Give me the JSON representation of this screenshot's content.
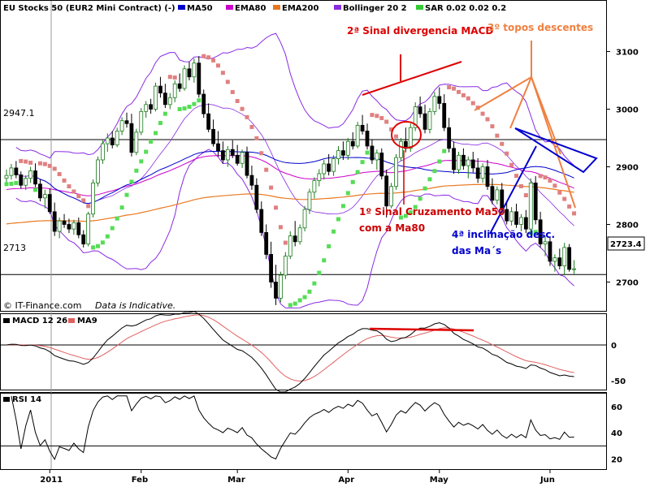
{
  "chart_data": {
    "type": "line",
    "title": "EU Stocks 50 (EUR2 Mini Contract) (-)",
    "legend": [
      {
        "name": "MA50",
        "color": "#0000cc"
      },
      {
        "name": "EMA80",
        "color": "#cc00cc"
      },
      {
        "name": "EMA200",
        "color": "#e87820"
      },
      {
        "name": "Bollinger 20 2",
        "color": "#8a2be2"
      },
      {
        "name": "SAR 0.02 0.02 0.2",
        "color": "#33cc33"
      }
    ],
    "price_axis": {
      "ticks": [
        2700,
        2800,
        2900,
        3000,
        3100
      ],
      "ylim": [
        2650,
        3150
      ]
    },
    "ref_lines": [
      {
        "label": "2947.1",
        "value": 2947.1
      },
      {
        "label": "2713",
        "value": 2713
      }
    ],
    "last_price": "2723.4",
    "x_labels": [
      {
        "label": "2011",
        "bar": 9
      },
      {
        "label": "Feb",
        "bar": 28
      },
      {
        "label": "Mar",
        "bar": 48
      },
      {
        "label": "Apr",
        "bar": 71
      },
      {
        "label": "May",
        "bar": 90
      },
      {
        "label": "Jun",
        "bar": 113
      }
    ],
    "candles": [
      {
        "o": 2880,
        "h": 2895,
        "l": 2870,
        "c": 2885
      },
      {
        "o": 2885,
        "h": 2905,
        "l": 2878,
        "c": 2898
      },
      {
        "o": 2898,
        "h": 2910,
        "l": 2880,
        "c": 2886
      },
      {
        "o": 2886,
        "h": 2892,
        "l": 2862,
        "c": 2868
      },
      {
        "o": 2868,
        "h": 2885,
        "l": 2860,
        "c": 2880
      },
      {
        "o": 2880,
        "h": 2900,
        "l": 2872,
        "c": 2893
      },
      {
        "o": 2893,
        "h": 2906,
        "l": 2865,
        "c": 2870
      },
      {
        "o": 2870,
        "h": 2878,
        "l": 2840,
        "c": 2846
      },
      {
        "o": 2846,
        "h": 2860,
        "l": 2828,
        "c": 2852
      },
      {
        "o": 2852,
        "h": 2862,
        "l": 2818,
        "c": 2822
      },
      {
        "o": 2822,
        "h": 2838,
        "l": 2780,
        "c": 2788
      },
      {
        "o": 2788,
        "h": 2812,
        "l": 2776,
        "c": 2806
      },
      {
        "o": 2806,
        "h": 2818,
        "l": 2794,
        "c": 2800
      },
      {
        "o": 2800,
        "h": 2810,
        "l": 2785,
        "c": 2792
      },
      {
        "o": 2792,
        "h": 2808,
        "l": 2782,
        "c": 2803
      },
      {
        "o": 2803,
        "h": 2812,
        "l": 2776,
        "c": 2782
      },
      {
        "o": 2782,
        "h": 2790,
        "l": 2760,
        "c": 2766
      },
      {
        "o": 2766,
        "h": 2822,
        "l": 2762,
        "c": 2818
      },
      {
        "o": 2818,
        "h": 2878,
        "l": 2812,
        "c": 2872
      },
      {
        "o": 2872,
        "h": 2918,
        "l": 2866,
        "c": 2912
      },
      {
        "o": 2912,
        "h": 2946,
        "l": 2905,
        "c": 2940
      },
      {
        "o": 2940,
        "h": 2958,
        "l": 2926,
        "c": 2950
      },
      {
        "o": 2950,
        "h": 2962,
        "l": 2932,
        "c": 2938
      },
      {
        "o": 2938,
        "h": 2968,
        "l": 2934,
        "c": 2962
      },
      {
        "o": 2962,
        "h": 2986,
        "l": 2955,
        "c": 2980
      },
      {
        "o": 2980,
        "h": 2994,
        "l": 2968,
        "c": 2975
      },
      {
        "o": 2975,
        "h": 2992,
        "l": 2918,
        "c": 2925
      },
      {
        "o": 2925,
        "h": 2966,
        "l": 2920,
        "c": 2960
      },
      {
        "o": 2960,
        "h": 3002,
        "l": 2955,
        "c": 2996
      },
      {
        "o": 2996,
        "h": 3014,
        "l": 2985,
        "c": 3008
      },
      {
        "o": 3008,
        "h": 3018,
        "l": 2992,
        "c": 3000
      },
      {
        "o": 3000,
        "h": 3046,
        "l": 2996,
        "c": 3040
      },
      {
        "o": 3040,
        "h": 3056,
        "l": 3020,
        "c": 3028
      },
      {
        "o": 3028,
        "h": 3044,
        "l": 3002,
        "c": 3008
      },
      {
        "o": 3008,
        "h": 3028,
        "l": 3000,
        "c": 3020
      },
      {
        "o": 3020,
        "h": 3050,
        "l": 3012,
        "c": 3044
      },
      {
        "o": 3044,
        "h": 3062,
        "l": 3030,
        "c": 3036
      },
      {
        "o": 3036,
        "h": 3076,
        "l": 3032,
        "c": 3070
      },
      {
        "o": 3070,
        "h": 3082,
        "l": 3050,
        "c": 3056
      },
      {
        "o": 3056,
        "h": 3088,
        "l": 3046,
        "c": 3080
      },
      {
        "o": 3080,
        "h": 3092,
        "l": 3020,
        "c": 3026
      },
      {
        "o": 3026,
        "h": 3034,
        "l": 2985,
        "c": 2992
      },
      {
        "o": 2992,
        "h": 3010,
        "l": 2960,
        "c": 2965
      },
      {
        "o": 2965,
        "h": 2982,
        "l": 2935,
        "c": 2940
      },
      {
        "o": 2940,
        "h": 2962,
        "l": 2918,
        "c": 2928
      },
      {
        "o": 2928,
        "h": 2944,
        "l": 2906,
        "c": 2912
      },
      {
        "o": 2912,
        "h": 2936,
        "l": 2900,
        "c": 2930
      },
      {
        "o": 2930,
        "h": 2946,
        "l": 2915,
        "c": 2920
      },
      {
        "o": 2920,
        "h": 2938,
        "l": 2902,
        "c": 2906
      },
      {
        "o": 2906,
        "h": 2930,
        "l": 2898,
        "c": 2925
      },
      {
        "o": 2925,
        "h": 2935,
        "l": 2880,
        "c": 2885
      },
      {
        "o": 2885,
        "h": 2902,
        "l": 2860,
        "c": 2868
      },
      {
        "o": 2868,
        "h": 2880,
        "l": 2820,
        "c": 2826
      },
      {
        "o": 2826,
        "h": 2840,
        "l": 2780,
        "c": 2786
      },
      {
        "o": 2786,
        "h": 2800,
        "l": 2740,
        "c": 2748
      },
      {
        "o": 2748,
        "h": 2770,
        "l": 2690,
        "c": 2700
      },
      {
        "o": 2700,
        "h": 2730,
        "l": 2660,
        "c": 2672
      },
      {
        "o": 2672,
        "h": 2718,
        "l": 2665,
        "c": 2712
      },
      {
        "o": 2712,
        "h": 2752,
        "l": 2705,
        "c": 2745
      },
      {
        "o": 2745,
        "h": 2788,
        "l": 2740,
        "c": 2780
      },
      {
        "o": 2780,
        "h": 2806,
        "l": 2762,
        "c": 2770
      },
      {
        "o": 2770,
        "h": 2800,
        "l": 2765,
        "c": 2794
      },
      {
        "o": 2794,
        "h": 2832,
        "l": 2788,
        "c": 2826
      },
      {
        "o": 2826,
        "h": 2862,
        "l": 2818,
        "c": 2856
      },
      {
        "o": 2856,
        "h": 2882,
        "l": 2845,
        "c": 2876
      },
      {
        "o": 2876,
        "h": 2896,
        "l": 2866,
        "c": 2888
      },
      {
        "o": 2888,
        "h": 2912,
        "l": 2878,
        "c": 2905
      },
      {
        "o": 2905,
        "h": 2922,
        "l": 2885,
        "c": 2892
      },
      {
        "o": 2892,
        "h": 2920,
        "l": 2884,
        "c": 2914
      },
      {
        "o": 2914,
        "h": 2936,
        "l": 2904,
        "c": 2928
      },
      {
        "o": 2928,
        "h": 2944,
        "l": 2912,
        "c": 2920
      },
      {
        "o": 2920,
        "h": 2950,
        "l": 2912,
        "c": 2944
      },
      {
        "o": 2944,
        "h": 2960,
        "l": 2930,
        "c": 2936
      },
      {
        "o": 2936,
        "h": 2978,
        "l": 2932,
        "c": 2972
      },
      {
        "o": 2972,
        "h": 2990,
        "l": 2956,
        "c": 2962
      },
      {
        "o": 2962,
        "h": 2975,
        "l": 2930,
        "c": 2936
      },
      {
        "o": 2936,
        "h": 2948,
        "l": 2905,
        "c": 2912
      },
      {
        "o": 2912,
        "h": 2930,
        "l": 2895,
        "c": 2924
      },
      {
        "o": 2924,
        "h": 2932,
        "l": 2878,
        "c": 2884
      },
      {
        "o": 2884,
        "h": 2895,
        "l": 2812,
        "c": 2832
      },
      {
        "o": 2832,
        "h": 2872,
        "l": 2828,
        "c": 2866
      },
      {
        "o": 2866,
        "h": 2922,
        "l": 2860,
        "c": 2916
      },
      {
        "o": 2916,
        "h": 2950,
        "l": 2910,
        "c": 2944
      },
      {
        "o": 2944,
        "h": 2968,
        "l": 2925,
        "c": 2932
      },
      {
        "o": 2932,
        "h": 2975,
        "l": 2926,
        "c": 2968
      },
      {
        "o": 2968,
        "h": 3012,
        "l": 2962,
        "c": 3004
      },
      {
        "o": 3004,
        "h": 3022,
        "l": 2985,
        "c": 2992
      },
      {
        "o": 2992,
        "h": 3008,
        "l": 2958,
        "c": 2965
      },
      {
        "o": 2965,
        "h": 3002,
        "l": 2958,
        "c": 2996
      },
      {
        "o": 2996,
        "h": 3030,
        "l": 2990,
        "c": 3022
      },
      {
        "o": 3022,
        "h": 3038,
        "l": 3000,
        "c": 3010
      },
      {
        "o": 3010,
        "h": 3026,
        "l": 2962,
        "c": 2968
      },
      {
        "o": 2968,
        "h": 2985,
        "l": 2925,
        "c": 2932
      },
      {
        "o": 2932,
        "h": 2944,
        "l": 2888,
        "c": 2895
      },
      {
        "o": 2895,
        "h": 2926,
        "l": 2888,
        "c": 2920
      },
      {
        "o": 2920,
        "h": 2932,
        "l": 2895,
        "c": 2902
      },
      {
        "o": 2902,
        "h": 2918,
        "l": 2880,
        "c": 2912
      },
      {
        "o": 2912,
        "h": 2926,
        "l": 2890,
        "c": 2898
      },
      {
        "o": 2898,
        "h": 2915,
        "l": 2872,
        "c": 2880
      },
      {
        "o": 2880,
        "h": 2906,
        "l": 2872,
        "c": 2900
      },
      {
        "o": 2900,
        "h": 2912,
        "l": 2860,
        "c": 2866
      },
      {
        "o": 2866,
        "h": 2880,
        "l": 2835,
        "c": 2842
      },
      {
        "o": 2842,
        "h": 2866,
        "l": 2835,
        "c": 2860
      },
      {
        "o": 2860,
        "h": 2872,
        "l": 2820,
        "c": 2826
      },
      {
        "o": 2826,
        "h": 2840,
        "l": 2800,
        "c": 2806
      },
      {
        "o": 2806,
        "h": 2830,
        "l": 2798,
        "c": 2822
      },
      {
        "o": 2822,
        "h": 2836,
        "l": 2794,
        "c": 2800
      },
      {
        "o": 2800,
        "h": 2818,
        "l": 2788,
        "c": 2812
      },
      {
        "o": 2812,
        "h": 2825,
        "l": 2785,
        "c": 2792
      },
      {
        "o": 2792,
        "h": 2880,
        "l": 2788,
        "c": 2872
      },
      {
        "o": 2872,
        "h": 2884,
        "l": 2800,
        "c": 2808
      },
      {
        "o": 2808,
        "h": 2822,
        "l": 2760,
        "c": 2766
      },
      {
        "o": 2766,
        "h": 2780,
        "l": 2745,
        "c": 2770
      },
      {
        "o": 2770,
        "h": 2778,
        "l": 2728,
        "c": 2736
      },
      {
        "o": 2736,
        "h": 2748,
        "l": 2718,
        "c": 2742
      },
      {
        "o": 2742,
        "h": 2758,
        "l": 2722,
        "c": 2728
      },
      {
        "o": 2728,
        "h": 2768,
        "l": 2712,
        "c": 2760
      },
      {
        "o": 2760,
        "h": 2766,
        "l": 2718,
        "c": 2722
      },
      {
        "o": 2722,
        "h": 2738,
        "l": 2714,
        "c": 2723
      }
    ],
    "macd": {
      "label": "MACD 12 26",
      "signal_label": "MA9",
      "ticks": [
        0,
        -50
      ],
      "ylim": [
        -70,
        45
      ]
    },
    "rsi": {
      "label": "RSI 14",
      "ticks": [
        20,
        40,
        60
      ],
      "ylim": [
        15,
        68
      ],
      "ref_lines": [
        30,
        70
      ]
    },
    "annotations": [
      {
        "text": "2ª Sinal divergencia MACD",
        "color": "#dd0000"
      },
      {
        "text": "3º topos descentes",
        "color": "#f08040"
      },
      {
        "text": "1º Sinal Cruzamento Ma50",
        "color": "#cc0000"
      },
      {
        "text": "com a Ma80",
        "color": "#cc0000"
      },
      {
        "text": "4ª inclinação desc.",
        "color": "#0000cc"
      },
      {
        "text": "das Ma´s",
        "color": "#0000cc"
      }
    ],
    "footer": {
      "source": "© IT-Finance.com",
      "note": "Data is Indicative."
    }
  }
}
